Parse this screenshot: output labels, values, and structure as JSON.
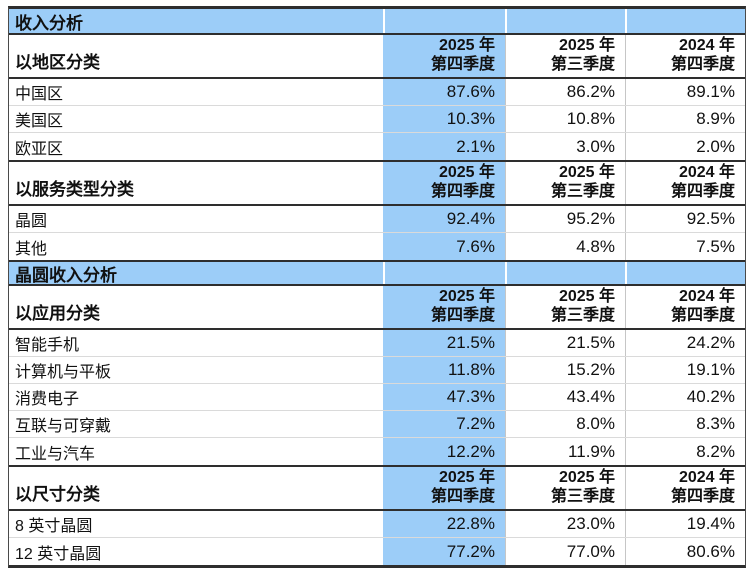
{
  "colors": {
    "highlight": "#9CCDF8",
    "border_dark": "#2e2e2e",
    "grid_light": "#dadada",
    "grid_mid": "#c6c6c6",
    "text": "#111111",
    "background": "#ffffff"
  },
  "report": {
    "section1_title": "收入分析",
    "section2_title": "晶圆收入分析",
    "column_headers": [
      {
        "line1": "2025 年",
        "line2": "第四季度",
        "highlighted": true
      },
      {
        "line1": "2025 年",
        "line2": "第三季度",
        "highlighted": false
      },
      {
        "line1": "2024 年",
        "line2": "第四季度",
        "highlighted": false
      }
    ],
    "groups": [
      {
        "label": "以地区分类",
        "rows": [
          {
            "name": "中国区",
            "values": [
              "87.6%",
              "86.2%",
              "89.1%"
            ]
          },
          {
            "name": "美国区",
            "values": [
              "10.3%",
              "10.8%",
              "8.9%"
            ]
          },
          {
            "name": "欧亚区",
            "values": [
              "2.1%",
              "3.0%",
              "2.0%"
            ]
          }
        ]
      },
      {
        "label": "以服务类型分类",
        "rows": [
          {
            "name": "晶圆",
            "values": [
              "92.4%",
              "95.2%",
              "92.5%"
            ]
          },
          {
            "name": "其他",
            "values": [
              "7.6%",
              "4.8%",
              "7.5%"
            ]
          }
        ]
      },
      {
        "label": "以应用分类",
        "rows": [
          {
            "name": "智能手机",
            "values": [
              "21.5%",
              "21.5%",
              "24.2%"
            ]
          },
          {
            "name": "计算机与平板",
            "values": [
              "11.8%",
              "15.2%",
              "19.1%"
            ]
          },
          {
            "name": "消费电子",
            "values": [
              "47.3%",
              "43.4%",
              "40.2%"
            ]
          },
          {
            "name": "互联与可穿戴",
            "values": [
              "7.2%",
              "8.0%",
              "8.3%"
            ]
          },
          {
            "name": "工业与汽车",
            "values": [
              "12.2%",
              "11.9%",
              "8.2%"
            ]
          }
        ]
      },
      {
        "label": "以尺寸分类",
        "rows": [
          {
            "name": "8 英寸晶圆",
            "values": [
              "22.8%",
              "23.0%",
              "19.4%"
            ]
          },
          {
            "name": "12 英寸晶圆",
            "values": [
              "77.2%",
              "77.0%",
              "80.6%"
            ]
          }
        ]
      }
    ]
  }
}
